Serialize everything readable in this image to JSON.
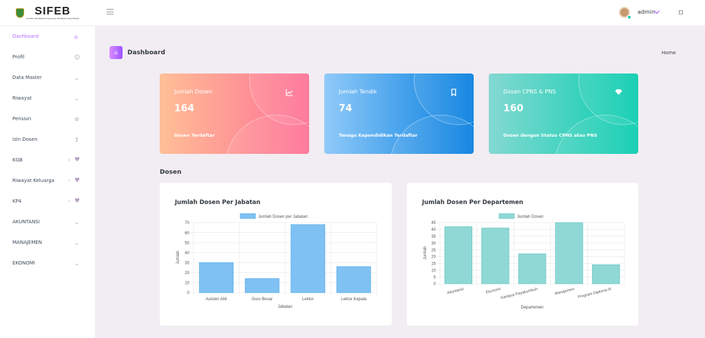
{
  "brand": {
    "title": "SIFEB",
    "subtitle": "SISTEM INFORMASI FAKULTAS EKONOMI DAN BISNIS"
  },
  "header": {
    "user_name": "admin"
  },
  "sidebar": {
    "items": [
      {
        "label": "Dashboard",
        "icon": "home-icon"
      },
      {
        "label": "Profil",
        "icon": "account-icon"
      },
      {
        "label": "Data Master",
        "icon": "chevron-down-icon"
      },
      {
        "label": "Riwayat",
        "icon": "chevron-down-icon"
      },
      {
        "label": "Pensiun",
        "icon": "pensiun-icon"
      },
      {
        "label": "Izin Dosen",
        "icon": "upload-icon"
      },
      {
        "label": "KGB",
        "icon": "heart-icon"
      },
      {
        "label": "Riwayat Keluarga",
        "icon": "heart-icon"
      },
      {
        "label": "KP4",
        "icon": "heart-icon"
      },
      {
        "label": "AKUNTANSI",
        "icon": "chevron-down-icon"
      },
      {
        "label": "MANAJEMEN",
        "icon": "chevron-down-icon"
      },
      {
        "label": "EKONOMI",
        "icon": "chevron-down-icon"
      }
    ]
  },
  "page": {
    "title": "Dashboard",
    "breadcrumb": "Home",
    "section": "Dosen"
  },
  "cards": [
    {
      "title": "Jumlah Dosen",
      "value": "164",
      "subtitle": "Dosen Terdaftar",
      "icon": "chart-line-icon"
    },
    {
      "title": "Jumlah Tendik",
      "value": "74",
      "subtitle": "Tenaga Kependidikan Terdaftar",
      "icon": "bookmark-icon"
    },
    {
      "title": "Dosen CPNS & PNS",
      "value": "160",
      "subtitle": "Dosen dengan Status CPNS atau PNS",
      "icon": "diamond-icon"
    }
  ],
  "colors": {
    "accent": "#b66dff",
    "bar_blue": "#7fc1f2",
    "bar_teal": "#8fd8d6"
  },
  "chart_data": [
    {
      "type": "bar",
      "title": "Jumlah Dosen Per Jabatan",
      "categories": [
        "Asisten Ahli",
        "Guru Besar",
        "Lektor",
        "Lektor Kepala"
      ],
      "series": [
        {
          "name": "Jumlah Dosen per Jabatan",
          "values": [
            30,
            14,
            68,
            26
          ]
        }
      ],
      "xlabel": "Jabatan",
      "ylabel": "Jumlah",
      "ylim": [
        0,
        70
      ],
      "yticks": [
        0,
        10,
        20,
        30,
        40,
        50,
        60,
        70
      ],
      "grid": true,
      "legend": "top"
    },
    {
      "type": "bar",
      "title": "Jumlah Dosen Per Departemen",
      "categories": [
        "Akuntansi",
        "Ekonomi",
        "Kampus Payakumbuh",
        "Manajemen",
        "Program Diploma III"
      ],
      "series": [
        {
          "name": "Jumlah Dosen",
          "values": [
            42,
            41,
            22,
            45,
            14
          ]
        }
      ],
      "xlabel": "Departemen",
      "ylabel": "Jumlah",
      "ylim": [
        0,
        45
      ],
      "yticks": [
        0,
        5,
        10,
        15,
        20,
        25,
        30,
        35,
        40,
        45
      ],
      "grid": true,
      "legend": "top"
    }
  ]
}
